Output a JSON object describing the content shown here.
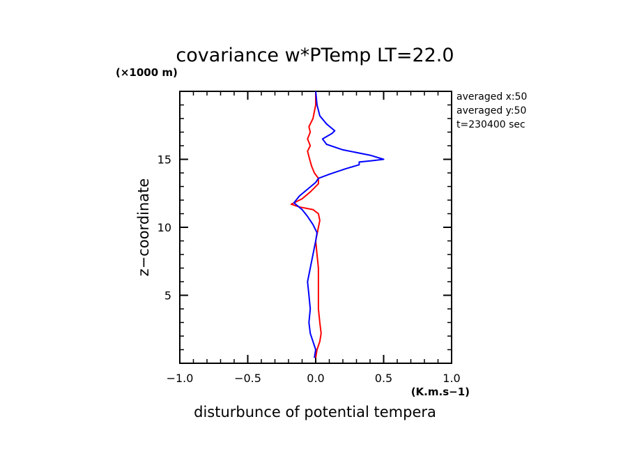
{
  "chart_data": {
    "type": "line",
    "title": "covariance w*PTemp LT=22.0",
    "xlabel": "disturbunce of potential tempera",
    "x_unit": "(K.m.s−1)",
    "ylabel": "z−coordinate",
    "y_unit": "(×1000 m)",
    "xlim": [
      -1.0,
      1.0
    ],
    "ylim": [
      0,
      20
    ],
    "x_ticks": [
      -1.0,
      -0.5,
      0.0,
      0.5,
      1.0
    ],
    "x_tick_labels": [
      "−1.0",
      "−0.5",
      "0.0",
      "0.5",
      "1.0"
    ],
    "y_ticks": [
      5,
      10,
      15
    ],
    "y_tick_labels": [
      "5",
      "10",
      "15"
    ],
    "grid": false,
    "annotations": [
      "averaged  x:50",
      "averaged  y:50",
      "t=230400 sec"
    ],
    "series": [
      {
        "color": "#ff0000",
        "points": [
          [
            0.0,
            0.4
          ],
          [
            0.01,
            1.0
          ],
          [
            0.03,
            1.6
          ],
          [
            0.04,
            2.2
          ],
          [
            0.03,
            3.0
          ],
          [
            0.02,
            4.0
          ],
          [
            0.02,
            5.0
          ],
          [
            0.02,
            6.0
          ],
          [
            0.02,
            7.0
          ],
          [
            0.01,
            8.0
          ],
          [
            0.0,
            9.0
          ],
          [
            0.02,
            10.0
          ],
          [
            0.03,
            10.5
          ],
          [
            0.02,
            11.0
          ],
          [
            -0.02,
            11.3
          ],
          [
            -0.12,
            11.5
          ],
          [
            -0.18,
            11.7
          ],
          [
            -0.1,
            12.1
          ],
          [
            -0.04,
            12.6
          ],
          [
            0.02,
            13.2
          ],
          [
            0.02,
            13.6
          ],
          [
            -0.01,
            14.0
          ],
          [
            -0.03,
            14.5
          ],
          [
            -0.05,
            15.2
          ],
          [
            -0.06,
            15.6
          ],
          [
            -0.04,
            16.0
          ],
          [
            -0.06,
            16.5
          ],
          [
            -0.04,
            17.0
          ],
          [
            -0.05,
            17.4
          ],
          [
            -0.02,
            18.0
          ],
          [
            0.0,
            19.0
          ],
          [
            0.0,
            20.0
          ]
        ]
      },
      {
        "color": "#0000ff",
        "points": [
          [
            -0.01,
            0.4
          ],
          [
            0.0,
            1.0
          ],
          [
            -0.02,
            1.6
          ],
          [
            -0.04,
            2.2
          ],
          [
            -0.05,
            3.0
          ],
          [
            -0.04,
            4.0
          ],
          [
            -0.05,
            5.0
          ],
          [
            -0.06,
            6.0
          ],
          [
            -0.04,
            7.0
          ],
          [
            -0.02,
            8.0
          ],
          [
            0.0,
            9.0
          ],
          [
            0.01,
            9.6
          ],
          [
            -0.02,
            10.2
          ],
          [
            -0.06,
            10.8
          ],
          [
            -0.1,
            11.3
          ],
          [
            -0.16,
            11.8
          ],
          [
            -0.12,
            12.3
          ],
          [
            -0.06,
            12.8
          ],
          [
            0.0,
            13.3
          ],
          [
            0.02,
            13.6
          ],
          [
            0.1,
            13.9
          ],
          [
            0.22,
            14.3
          ],
          [
            0.32,
            14.6
          ],
          [
            0.32,
            14.8
          ],
          [
            0.42,
            14.9
          ],
          [
            0.5,
            15.0
          ],
          [
            0.4,
            15.3
          ],
          [
            0.2,
            15.7
          ],
          [
            0.08,
            16.1
          ],
          [
            0.05,
            16.5
          ],
          [
            0.12,
            16.9
          ],
          [
            0.14,
            17.1
          ],
          [
            0.08,
            17.6
          ],
          [
            0.03,
            18.2
          ],
          [
            0.01,
            19.0
          ],
          [
            0.0,
            20.0
          ]
        ]
      }
    ]
  }
}
